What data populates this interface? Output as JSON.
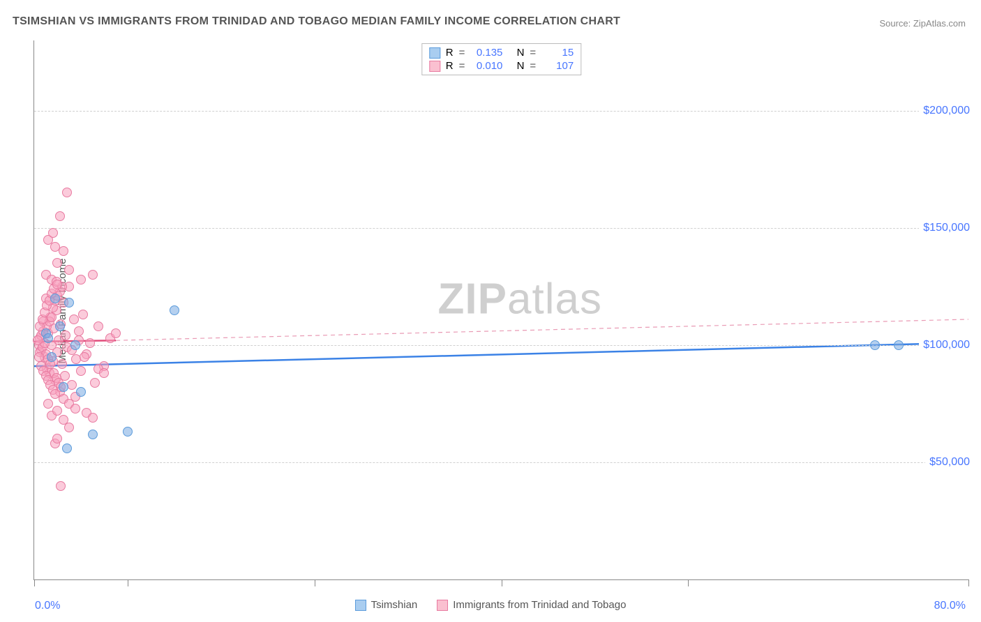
{
  "title": "TSIMSHIAN VS IMMIGRANTS FROM TRINIDAD AND TOBAGO MEDIAN FAMILY INCOME CORRELATION CHART",
  "source_prefix": "Source: ",
  "source": "ZipAtlas.com",
  "y_axis_title": "Median Family Income",
  "watermark_a": "ZIP",
  "watermark_b": "atlas",
  "chart": {
    "type": "scatter",
    "xlim": [
      0,
      80
    ],
    "ylim": [
      0,
      230000
    ],
    "x_tick_positions": [
      0,
      8,
      24,
      40,
      56,
      80
    ],
    "x_label_min": "0.0%",
    "x_label_max": "80.0%",
    "y_gridlines": [
      {
        "value": 50000,
        "label": "$50,000"
      },
      {
        "value": 100000,
        "label": "$100,000"
      },
      {
        "value": 150000,
        "label": "$150,000"
      },
      {
        "value": 200000,
        "label": "$200,000"
      }
    ],
    "background_color": "#ffffff",
    "grid_color": "#d0d0d0",
    "axis_color": "#888888",
    "value_text_color": "#4876ff"
  },
  "series": {
    "blue": {
      "name": "Tsimshian",
      "R": "0.135",
      "N": "15",
      "color_fill": "#a9cdf0",
      "color_stroke": "#5b9bdb",
      "trend": {
        "x1": 0,
        "y1": 91000,
        "x2": 80,
        "y2": 101000,
        "width": 2.5,
        "dash": "none",
        "color": "#3b82e6"
      },
      "points": [
        {
          "x": 1.0,
          "y": 105000
        },
        {
          "x": 1.2,
          "y": 103000
        },
        {
          "x": 1.8,
          "y": 120000
        },
        {
          "x": 3.0,
          "y": 118000
        },
        {
          "x": 2.2,
          "y": 108000
        },
        {
          "x": 3.5,
          "y": 100000
        },
        {
          "x": 4.0,
          "y": 80000
        },
        {
          "x": 2.5,
          "y": 82000
        },
        {
          "x": 2.8,
          "y": 56000
        },
        {
          "x": 5.0,
          "y": 62000
        },
        {
          "x": 8.0,
          "y": 63000
        },
        {
          "x": 12.0,
          "y": 115000
        },
        {
          "x": 1.5,
          "y": 95000
        },
        {
          "x": 72.0,
          "y": 100000
        },
        {
          "x": 74.0,
          "y": 100000
        }
      ]
    },
    "pink": {
      "name": "Immigrants from Trinidad and Tobago",
      "R": "0.010",
      "N": "107",
      "color_fill": "#fac0d0",
      "color_stroke": "#e87aa0",
      "trend_solid": {
        "x1": 0,
        "y1": 101500,
        "x2": 7,
        "y2": 102000,
        "width": 2.5,
        "dash": "none",
        "color": "#e14d7b"
      },
      "trend_dash": {
        "x1": 7,
        "y1": 102000,
        "x2": 80,
        "y2": 111000,
        "width": 1.2,
        "dash": "6 5",
        "color": "#e99ab4"
      },
      "points": [
        {
          "x": 0.5,
          "y": 103000
        },
        {
          "x": 0.6,
          "y": 98000
        },
        {
          "x": 0.8,
          "y": 110000
        },
        {
          "x": 0.9,
          "y": 95000
        },
        {
          "x": 1.0,
          "y": 120000
        },
        {
          "x": 1.1,
          "y": 90000
        },
        {
          "x": 1.2,
          "y": 105000
        },
        {
          "x": 1.3,
          "y": 88000
        },
        {
          "x": 1.4,
          "y": 112000
        },
        {
          "x": 1.5,
          "y": 100000
        },
        {
          "x": 1.6,
          "y": 93000
        },
        {
          "x": 1.7,
          "y": 107000
        },
        {
          "x": 1.8,
          "y": 85000
        },
        {
          "x": 1.9,
          "y": 115000
        },
        {
          "x": 2.0,
          "y": 97000
        },
        {
          "x": 2.1,
          "y": 102000
        },
        {
          "x": 2.2,
          "y": 80000
        },
        {
          "x": 2.3,
          "y": 109000
        },
        {
          "x": 2.4,
          "y": 92000
        },
        {
          "x": 2.5,
          "y": 118000
        },
        {
          "x": 2.6,
          "y": 87000
        },
        {
          "x": 2.7,
          "y": 104000
        },
        {
          "x": 2.8,
          "y": 99000
        },
        {
          "x": 3.0,
          "y": 125000
        },
        {
          "x": 3.2,
          "y": 83000
        },
        {
          "x": 3.4,
          "y": 111000
        },
        {
          "x": 3.6,
          "y": 94000
        },
        {
          "x": 3.8,
          "y": 106000
        },
        {
          "x": 4.0,
          "y": 89000
        },
        {
          "x": 4.2,
          "y": 113000
        },
        {
          "x": 4.5,
          "y": 96000
        },
        {
          "x": 4.8,
          "y": 101000
        },
        {
          "x": 5.0,
          "y": 130000
        },
        {
          "x": 5.2,
          "y": 84000
        },
        {
          "x": 5.5,
          "y": 108000
        },
        {
          "x": 6.0,
          "y": 91000
        },
        {
          "x": 6.5,
          "y": 103000
        },
        {
          "x": 7.0,
          "y": 105000
        },
        {
          "x": 1.0,
          "y": 130000
        },
        {
          "x": 1.5,
          "y": 128000
        },
        {
          "x": 2.0,
          "y": 135000
        },
        {
          "x": 2.5,
          "y": 140000
        },
        {
          "x": 3.0,
          "y": 132000
        },
        {
          "x": 1.8,
          "y": 142000
        },
        {
          "x": 2.2,
          "y": 155000
        },
        {
          "x": 2.8,
          "y": 165000
        },
        {
          "x": 1.2,
          "y": 75000
        },
        {
          "x": 1.5,
          "y": 70000
        },
        {
          "x": 2.0,
          "y": 72000
        },
        {
          "x": 2.5,
          "y": 68000
        },
        {
          "x": 3.0,
          "y": 65000
        },
        {
          "x": 3.5,
          "y": 78000
        },
        {
          "x": 1.8,
          "y": 58000
        },
        {
          "x": 2.3,
          "y": 40000
        },
        {
          "x": 0.4,
          "y": 100000
        },
        {
          "x": 0.5,
          "y": 97000
        },
        {
          "x": 0.6,
          "y": 104000
        },
        {
          "x": 0.7,
          "y": 99000
        },
        {
          "x": 0.8,
          "y": 106000
        },
        {
          "x": 0.9,
          "y": 101000
        },
        {
          "x": 1.0,
          "y": 96000
        },
        {
          "x": 1.1,
          "y": 108000
        },
        {
          "x": 1.2,
          "y": 94000
        },
        {
          "x": 1.3,
          "y": 110000
        },
        {
          "x": 1.4,
          "y": 92000
        },
        {
          "x": 1.5,
          "y": 112000
        },
        {
          "x": 1.6,
          "y": 116000
        },
        {
          "x": 1.7,
          "y": 88000
        },
        {
          "x": 1.8,
          "y": 119000
        },
        {
          "x": 1.9,
          "y": 86000
        },
        {
          "x": 2.0,
          "y": 121000
        },
        {
          "x": 2.1,
          "y": 84000
        },
        {
          "x": 2.2,
          "y": 123000
        },
        {
          "x": 2.3,
          "y": 82000
        },
        {
          "x": 2.4,
          "y": 125000
        },
        {
          "x": 0.3,
          "y": 102000
        },
        {
          "x": 0.4,
          "y": 95000
        },
        {
          "x": 0.5,
          "y": 108000
        },
        {
          "x": 0.6,
          "y": 91000
        },
        {
          "x": 0.7,
          "y": 111000
        },
        {
          "x": 0.8,
          "y": 89000
        },
        {
          "x": 0.9,
          "y": 114000
        },
        {
          "x": 1.0,
          "y": 87000
        },
        {
          "x": 1.1,
          "y": 117000
        },
        {
          "x": 1.2,
          "y": 85000
        },
        {
          "x": 1.3,
          "y": 119000
        },
        {
          "x": 1.4,
          "y": 83000
        },
        {
          "x": 1.5,
          "y": 122000
        },
        {
          "x": 1.6,
          "y": 81000
        },
        {
          "x": 1.7,
          "y": 124000
        },
        {
          "x": 1.8,
          "y": 79000
        },
        {
          "x": 1.9,
          "y": 127000
        },
        {
          "x": 2.5,
          "y": 77000
        },
        {
          "x": 3.0,
          "y": 75000
        },
        {
          "x": 3.5,
          "y": 73000
        },
        {
          "x": 4.0,
          "y": 128000
        },
        {
          "x": 4.5,
          "y": 71000
        },
        {
          "x": 5.0,
          "y": 69000
        },
        {
          "x": 5.5,
          "y": 90000
        },
        {
          "x": 6.0,
          "y": 88000
        },
        {
          "x": 1.2,
          "y": 145000
        },
        {
          "x": 1.6,
          "y": 148000
        },
        {
          "x": 2.0,
          "y": 60000
        },
        {
          "x": 2.0,
          "y": 126000
        },
        {
          "x": 3.2,
          "y": 98000
        },
        {
          "x": 3.8,
          "y": 102000
        },
        {
          "x": 4.3,
          "y": 95000
        }
      ]
    }
  },
  "stat_labels": {
    "R": "R",
    "N": "N",
    "eq": "="
  }
}
